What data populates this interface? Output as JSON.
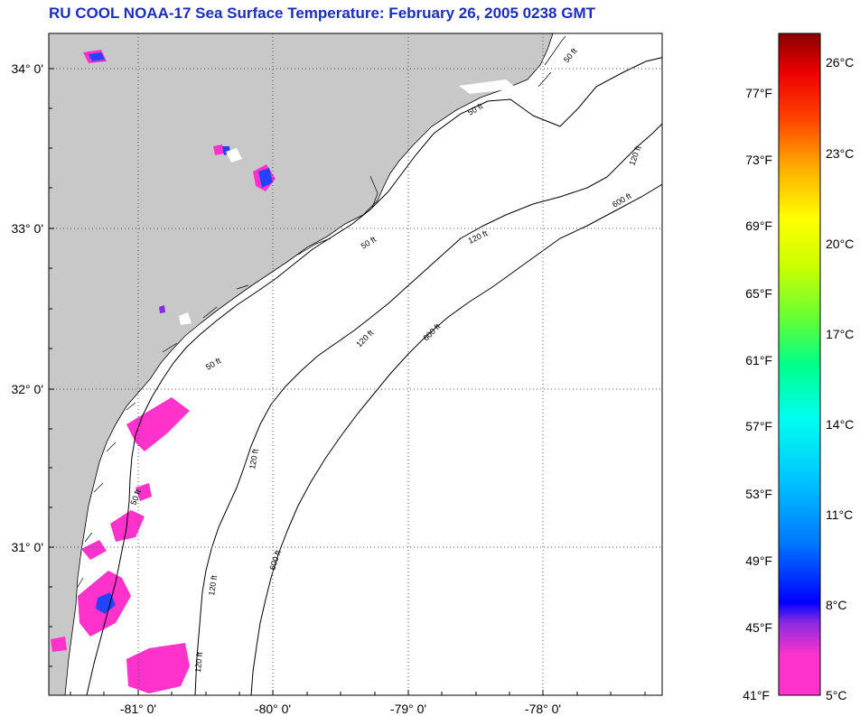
{
  "title": "RU COOL  NOAA-17  Sea Surface Temperature:  February 26, 2005 0238 GMT",
  "map": {
    "lat_labels": [
      "34° 0'",
      "33° 0'",
      "32° 0'",
      "31° 0'"
    ],
    "lon_labels": [
      "-81° 0'",
      "-80° 0'",
      "-79° 0'",
      "-78° 0'"
    ],
    "contour_labels": {
      "c50": "50 ft",
      "c120": "120 ft",
      "c600": "600 ft"
    },
    "colors": {
      "land": "#c8c8c8",
      "ocean": "#ffffff",
      "cold_sst": "#ff33cc",
      "cool_sst": "#2244ff"
    }
  },
  "colorbar": {
    "fahrenheit_labels": [
      "77°F",
      "73°F",
      "69°F",
      "65°F",
      "61°F",
      "57°F",
      "53°F",
      "49°F",
      "45°F",
      "41°F"
    ],
    "celsius_labels": [
      "26°C",
      "23°C",
      "20°C",
      "17°C",
      "14°C",
      "11°C",
      "8°C",
      "5°C"
    ]
  }
}
